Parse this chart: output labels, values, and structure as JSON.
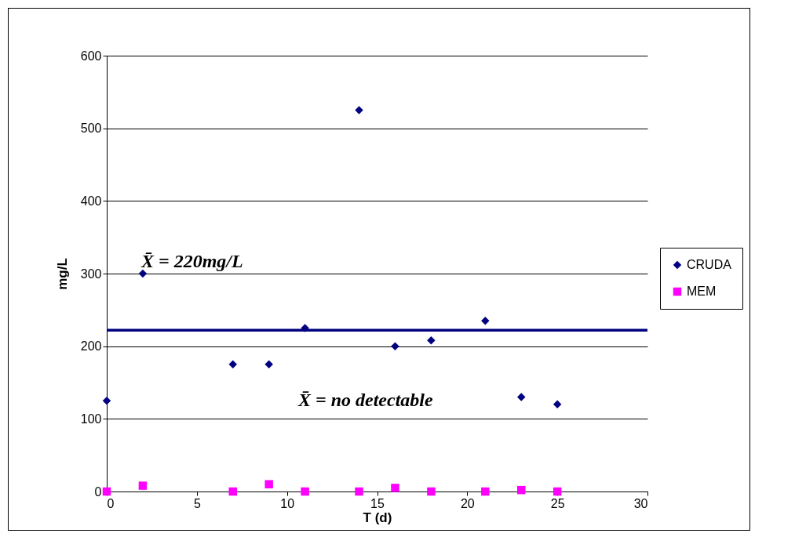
{
  "chart_data": {
    "type": "scatter",
    "xlabel": "T (d)",
    "ylabel": "mg/L",
    "x": [
      0,
      2,
      7,
      9,
      11,
      14,
      16,
      18,
      21,
      23,
      25
    ],
    "series": [
      {
        "name": "CRUDA",
        "color": "#000080",
        "marker": "diamond",
        "values": [
          125,
          300,
          175,
          175,
          225,
          525,
          200,
          208,
          235,
          130,
          120
        ]
      },
      {
        "name": "MEM",
        "color": "#ff00ff",
        "marker": "square",
        "values": [
          0,
          8,
          0,
          10,
          0,
          0,
          5,
          0,
          0,
          2,
          0
        ]
      }
    ],
    "xlim": [
      0,
      30
    ],
    "xticks": [
      0,
      5,
      10,
      15,
      20,
      25,
      30
    ],
    "ylim": [
      0,
      600
    ],
    "yticks": [
      0,
      100,
      200,
      300,
      400,
      500,
      600
    ],
    "grid": "y",
    "legend": "right",
    "ref_lines": [
      {
        "axis": "y",
        "value": 222,
        "color": "#000080"
      }
    ],
    "annotations": [
      "X̄ = 220mg/L",
      "X̄ = no detectable"
    ]
  }
}
